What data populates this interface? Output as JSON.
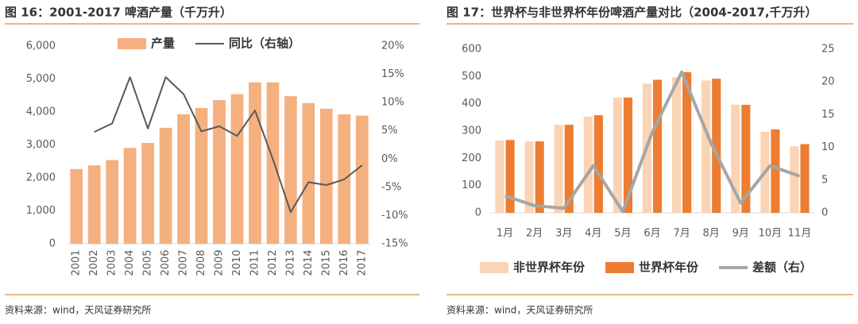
{
  "chart_data": [
    {
      "type": "bar",
      "title": "图 16：2001-2017 啤酒产量（千万升）",
      "source": "资料来源：wind，天风证券研究所",
      "categories": [
        "2001",
        "2002",
        "2003",
        "2004",
        "2005",
        "2006",
        "2007",
        "2008",
        "2009",
        "2010",
        "2011",
        "2012",
        "2013",
        "2014",
        "2015",
        "2016",
        "2017"
      ],
      "series": [
        {
          "name": "产量",
          "color": "#f5b07f",
          "values": [
            2270,
            2380,
            2540,
            2910,
            3060,
            3520,
            3930,
            4120,
            4360,
            4540,
            4900,
            4900,
            4480,
            4270,
            4100,
            3930,
            3890
          ]
        },
        {
          "name": "同比（右轴）",
          "color": "#595959",
          "axis": "y2",
          "values": [
            null,
            4.8,
            6.3,
            14.5,
            5.4,
            14.5,
            11.5,
            4.9,
            5.8,
            4.1,
            8.6,
            0.0,
            -9.4,
            -4.1,
            -4.6,
            -3.6,
            -1.1
          ]
        }
      ],
      "ylim": [
        0,
        6000
      ],
      "yticks": [
        0,
        {
          "value": 1000,
          "label": "1,000"
        },
        {
          "value": 2000,
          "label": "2,000"
        },
        {
          "value": 3000,
          "label": "3,000"
        },
        {
          "value": 4000,
          "label": "4,000"
        },
        {
          "value": 5000,
          "label": "5,000"
        },
        {
          "value": 6000,
          "label": "6,000"
        }
      ],
      "y2lim": [
        -15,
        20
      ],
      "y2ticks": [
        {
          "value": -15,
          "label": "-15%"
        },
        {
          "value": -10,
          "label": "-10%"
        },
        {
          "value": -5,
          "label": "-5%"
        },
        {
          "value": 0,
          "label": "0%"
        },
        {
          "value": 5,
          "label": "5%"
        },
        {
          "value": 10,
          "label": "10%"
        },
        {
          "value": 15,
          "label": "15%"
        },
        {
          "value": 20,
          "label": "20%"
        }
      ],
      "legend": "top"
    },
    {
      "type": "bar",
      "title": "图 17：世界杯与非世界杯年份啤酒产量对比（2004-2017,千万升）",
      "source": "资料来源：wind，天风证券研究所",
      "categories": [
        "1月",
        "2月",
        "3月",
        "4月",
        "5月",
        "6月",
        "7月",
        "8月",
        "9月",
        "10月",
        "11月"
      ],
      "series": [
        {
          "name": "非世界杯年份",
          "color": "#fbd3b5",
          "values": [
            265,
            262,
            323,
            353,
            423,
            474,
            497,
            485,
            397,
            297,
            244
          ]
        },
        {
          "name": "世界杯年份",
          "color": "#ed7d31",
          "values": [
            267,
            262,
            323,
            358,
            423,
            488,
            516,
            492,
            396,
            306,
            252
          ]
        },
        {
          "name": "差额（右）",
          "color": "#a6a6a6",
          "axis": "y2",
          "values": [
            2.6,
            1.1,
            0.7,
            7.2,
            0.2,
            12.3,
            21.5,
            10.6,
            1.5,
            7.2,
            5.6
          ]
        }
      ],
      "ylim": [
        0,
        600
      ],
      "yticks": [
        0,
        100,
        200,
        300,
        400,
        500,
        600
      ],
      "y2lim": [
        0,
        25
      ],
      "y2ticks": [
        0,
        5,
        10,
        15,
        20,
        25
      ],
      "legend": "bottom"
    }
  ]
}
